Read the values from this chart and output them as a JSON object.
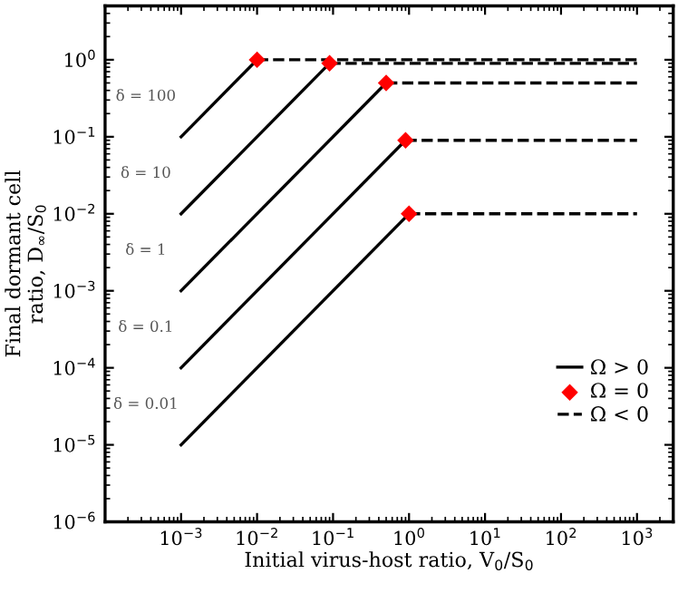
{
  "chart_data": {
    "type": "line",
    "xlabel": "Initial virus-host ratio, V$_{0}$/S$_{0}$",
    "ylabel": "Final dormant cell\nratio, D$_{∞}$/S$_{0}$",
    "log": "xy",
    "grid": false,
    "legend": "bottom right",
    "xlim": [
      0.0001,
      3000
    ],
    "ylim": [
      1e-06,
      5
    ],
    "xticks": [
      {
        "value": 0.001,
        "label": "10$^{−3}$"
      },
      {
        "value": 0.01,
        "label": "10$^{−2}$"
      },
      {
        "value": 0.1,
        "label": "10$^{−1}$"
      },
      {
        "value": 1,
        "label": "10$^{0}$"
      },
      {
        "value": 10,
        "label": "10$^{1}$"
      },
      {
        "value": 100,
        "label": "10$^{2}$"
      },
      {
        "value": 1000,
        "label": "10$^{3}$"
      }
    ],
    "yticks": [
      {
        "value": 1e-06,
        "label": "10$^{−6}$"
      },
      {
        "value": 1e-05,
        "label": "10$^{−5}$"
      },
      {
        "value": 0.0001,
        "label": "10$^{−4}$"
      },
      {
        "value": 0.001,
        "label": "10$^{−3}$"
      },
      {
        "value": 0.01,
        "label": "10$^{−2}$"
      },
      {
        "value": 0.1,
        "label": "10$^{−1}$"
      },
      {
        "value": 1,
        "label": "10$^{0}$"
      }
    ],
    "series": [
      {
        "name": "Ω > 0",
        "line_style": "solid",
        "marker": "none",
        "color": "#000000",
        "x": [
          0.001,
          0.01
        ],
        "values": [
          0.1,
          1
        ]
      },
      {
        "type": "line",
        "line_style": "solid",
        "marker": "none",
        "color": "#000000",
        "x": [
          0.001,
          0.09
        ],
        "values": [
          0.01,
          0.9
        ]
      },
      {
        "type": "line",
        "line_style": "solid",
        "marker": "none",
        "color": "#000000",
        "x": [
          0.001,
          0.5
        ],
        "values": [
          0.001,
          0.5
        ]
      },
      {
        "type": "line",
        "line_style": "solid",
        "marker": "none",
        "color": "#000000",
        "x": [
          0.001,
          0.9
        ],
        "values": [
          0.0001,
          0.09
        ]
      },
      {
        "type": "line",
        "line_style": "solid",
        "marker": "none",
        "color": "#000000",
        "x": [
          0.001,
          1
        ],
        "values": [
          1e-05,
          0.01
        ]
      },
      {
        "name": "Ω = 0",
        "type": "scatter",
        "marker": "diamond",
        "color": "#ff0000",
        "x": [
          0.01,
          0.09,
          0.5,
          0.9,
          1
        ],
        "values": [
          1,
          0.9,
          0.5,
          0.09,
          0.01
        ]
      },
      {
        "name": "Ω < 0",
        "line_style": "dashed",
        "marker": "none",
        "color": "#000000",
        "x": [
          0.01,
          1000
        ],
        "values": [
          1,
          1
        ]
      },
      {
        "type": "line",
        "line_style": "dashed",
        "marker": "none",
        "color": "#000000",
        "x": [
          0.09,
          1000
        ],
        "values": [
          0.9,
          0.9
        ]
      },
      {
        "type": "line",
        "line_style": "dashed",
        "marker": "none",
        "color": "#000000",
        "x": [
          0.5,
          1000
        ],
        "values": [
          0.5,
          0.5
        ]
      },
      {
        "type": "line",
        "line_style": "dashed",
        "marker": "none",
        "color": "#000000",
        "x": [
          0.9,
          1000
        ],
        "values": [
          0.09,
          0.09
        ]
      },
      {
        "type": "line",
        "line_style": "dashed",
        "marker": "none",
        "color": "#000000",
        "x": [
          1,
          1000
        ],
        "values": [
          0.01,
          0.01
        ]
      }
    ],
    "annotations": [
      "δ = 100",
      "δ = 10",
      "δ = 1",
      "δ = 0.1",
      "δ = 0.01"
    ]
  }
}
